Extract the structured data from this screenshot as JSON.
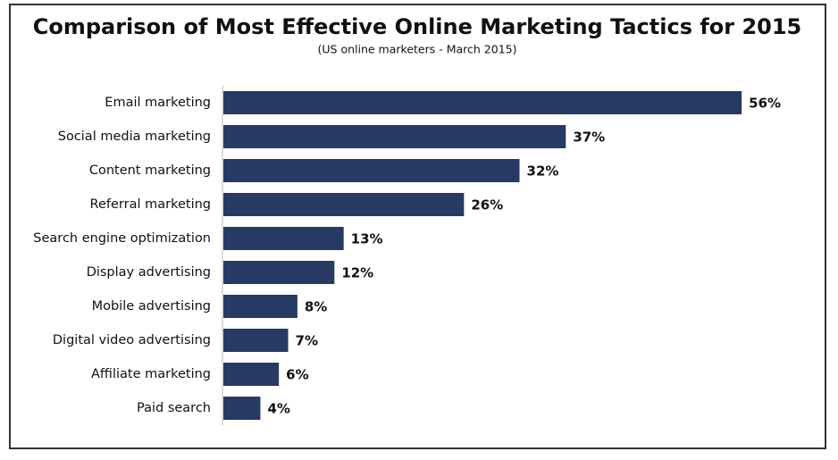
{
  "chart_data": {
    "type": "bar",
    "title": "Comparison of Most Effective Online Marketing Tactics for 2015",
    "subtitle": "(US online marketers - March 2015)",
    "categories": [
      "Email marketing",
      "Social media marketing",
      "Content marketing",
      "Referral marketing",
      "Search engine optimization",
      "Display advertising",
      "Mobile advertising",
      "Digital video advertising",
      "Affiliate marketing",
      "Paid search"
    ],
    "values": [
      56,
      37,
      32,
      26,
      13,
      12,
      8,
      7,
      6,
      4
    ],
    "value_labels": [
      "56%",
      "37%",
      "32%",
      "26%",
      "13%",
      "12%",
      "8%",
      "7%",
      "6%",
      "4%"
    ],
    "color": "#263a63"
  }
}
